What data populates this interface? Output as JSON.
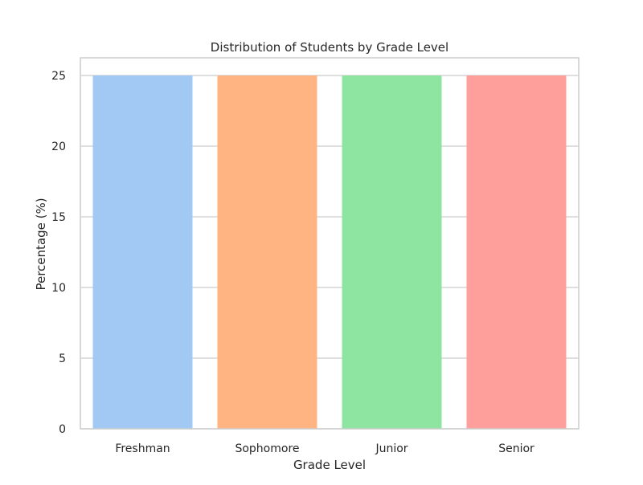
{
  "chart_data": {
    "type": "bar",
    "title": "Distribution of Students by Grade Level",
    "xlabel": "Grade Level",
    "ylabel": "Percentage (%)",
    "categories": [
      "Freshman",
      "Sophomore",
      "Junior",
      "Senior"
    ],
    "values": [
      25,
      25,
      25,
      25
    ],
    "colors": [
      "#a1c9f4",
      "#ffb482",
      "#8de5a1",
      "#ff9f9b"
    ],
    "ylim": [
      0,
      26.25
    ],
    "yticks": [
      0,
      5,
      10,
      15,
      20,
      25
    ],
    "grid": true,
    "background": "#ffffff",
    "grid_color": "#cccccc",
    "spine_color": "#cccccc"
  }
}
